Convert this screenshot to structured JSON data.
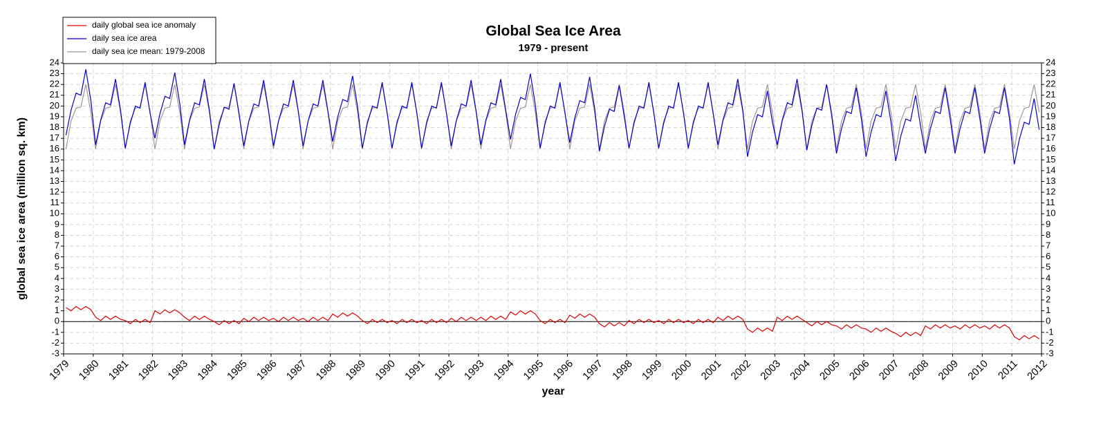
{
  "chart_data": {
    "type": "line",
    "title": "Global Sea Ice Area",
    "subtitle": "1979 - present",
    "xlabel": "year",
    "ylabel": "global sea ice area (million sq. km)",
    "xlim": [
      1979,
      2012
    ],
    "xticks": [
      1979,
      1980,
      1981,
      1982,
      1983,
      1984,
      1985,
      1986,
      1987,
      1988,
      1989,
      1990,
      1991,
      1992,
      1993,
      1994,
      1995,
      1996,
      1997,
      1998,
      1999,
      2000,
      2001,
      2002,
      2003,
      2004,
      2005,
      2006,
      2007,
      2008,
      2009,
      2010,
      2011,
      2012
    ],
    "ylim": [
      -3,
      24
    ],
    "yticks": [
      -3,
      -2,
      -1,
      0,
      1,
      2,
      3,
      4,
      5,
      6,
      7,
      8,
      9,
      10,
      11,
      12,
      13,
      14,
      15,
      16,
      17,
      18,
      19,
      20,
      21,
      22,
      23,
      24
    ],
    "grid": true,
    "legend": "upper left",
    "x": [
      1979.08,
      1979.25,
      1979.42,
      1979.58,
      1979.75,
      1979.92,
      1980.08,
      1980.25,
      1980.42,
      1980.58,
      1980.75,
      1980.92,
      1981.08,
      1981.25,
      1981.42,
      1981.58,
      1981.75,
      1981.92,
      1982.08,
      1982.25,
      1982.42,
      1982.58,
      1982.75,
      1982.92,
      1983.08,
      1983.25,
      1983.42,
      1983.58,
      1983.75,
      1983.92,
      1984.08,
      1984.25,
      1984.42,
      1984.58,
      1984.75,
      1984.92,
      1985.08,
      1985.25,
      1985.42,
      1985.58,
      1985.75,
      1985.92,
      1986.08,
      1986.25,
      1986.42,
      1986.58,
      1986.75,
      1986.92,
      1987.08,
      1987.25,
      1987.42,
      1987.58,
      1987.75,
      1987.92,
      1988.08,
      1988.25,
      1988.42,
      1988.58,
      1988.75,
      1988.92,
      1989.08,
      1989.25,
      1989.42,
      1989.58,
      1989.75,
      1989.92,
      1990.08,
      1990.25,
      1990.42,
      1990.58,
      1990.75,
      1990.92,
      1991.08,
      1991.25,
      1991.42,
      1991.58,
      1991.75,
      1991.92,
      1992.08,
      1992.25,
      1992.42,
      1992.58,
      1992.75,
      1992.92,
      1993.08,
      1993.25,
      1993.42,
      1993.58,
      1993.75,
      1993.92,
      1994.08,
      1994.25,
      1994.42,
      1994.58,
      1994.75,
      1994.92,
      1995.08,
      1995.25,
      1995.42,
      1995.58,
      1995.75,
      1995.92,
      1996.08,
      1996.25,
      1996.42,
      1996.58,
      1996.75,
      1996.92,
      1997.08,
      1997.25,
      1997.42,
      1997.58,
      1997.75,
      1997.92,
      1998.08,
      1998.25,
      1998.42,
      1998.58,
      1998.75,
      1998.92,
      1999.08,
      1999.25,
      1999.42,
      1999.58,
      1999.75,
      1999.92,
      2000.08,
      2000.25,
      2000.42,
      2000.58,
      2000.75,
      2000.92,
      2001.08,
      2001.25,
      2001.42,
      2001.58,
      2001.75,
      2001.92,
      2002.08,
      2002.25,
      2002.42,
      2002.58,
      2002.75,
      2002.92,
      2003.08,
      2003.25,
      2003.42,
      2003.58,
      2003.75,
      2003.92,
      2004.08,
      2004.25,
      2004.42,
      2004.58,
      2004.75,
      2004.92,
      2005.08,
      2005.25,
      2005.42,
      2005.58,
      2005.75,
      2005.92,
      2006.08,
      2006.25,
      2006.42,
      2006.58,
      2006.75,
      2006.92,
      2007.08,
      2007.25,
      2007.42,
      2007.58,
      2007.75,
      2007.92,
      2008.08,
      2008.25,
      2008.42,
      2008.58,
      2008.75,
      2008.92,
      2009.08,
      2009.25,
      2009.42,
      2009.58,
      2009.75,
      2009.92,
      2010.08,
      2010.25,
      2010.42,
      2010.58,
      2010.75,
      2010.92,
      2011.08,
      2011.25,
      2011.42,
      2011.58,
      2011.75,
      2011.92
    ],
    "series": [
      {
        "name": "daily global sea ice anomaly",
        "color": "#dd0000",
        "values": [
          1.3,
          1.0,
          1.4,
          1.1,
          1.4,
          1.1,
          0.4,
          0.1,
          0.5,
          0.2,
          0.5,
          0.2,
          0.1,
          -0.2,
          0.2,
          -0.1,
          0.2,
          -0.1,
          1.0,
          0.7,
          1.1,
          0.8,
          1.1,
          0.8,
          0.4,
          0.1,
          0.5,
          0.2,
          0.5,
          0.2,
          0.0,
          -0.3,
          0.1,
          -0.2,
          0.1,
          -0.2,
          0.3,
          0.0,
          0.4,
          0.1,
          0.4,
          0.1,
          0.3,
          0.0,
          0.4,
          0.1,
          0.4,
          0.1,
          0.3,
          0.0,
          0.4,
          0.1,
          0.4,
          0.1,
          0.7,
          0.4,
          0.8,
          0.5,
          0.8,
          0.5,
          0.1,
          -0.2,
          0.2,
          -0.1,
          0.2,
          -0.1,
          0.1,
          -0.2,
          0.2,
          -0.1,
          0.2,
          -0.1,
          0.1,
          -0.2,
          0.2,
          -0.1,
          0.2,
          -0.1,
          0.3,
          0.0,
          0.4,
          0.1,
          0.4,
          0.1,
          0.4,
          0.1,
          0.5,
          0.2,
          0.5,
          0.2,
          0.9,
          0.6,
          1.0,
          0.7,
          1.0,
          0.7,
          0.1,
          -0.2,
          0.2,
          -0.1,
          0.2,
          -0.1,
          0.6,
          0.3,
          0.7,
          0.4,
          0.7,
          0.4,
          -0.2,
          -0.5,
          -0.1,
          -0.4,
          -0.1,
          -0.4,
          0.1,
          -0.2,
          0.2,
          -0.1,
          0.2,
          -0.1,
          0.1,
          -0.2,
          0.2,
          -0.1,
          0.2,
          -0.1,
          0.1,
          -0.2,
          0.2,
          -0.1,
          0.2,
          -0.1,
          0.4,
          0.1,
          0.5,
          0.2,
          0.5,
          0.2,
          -0.7,
          -1.0,
          -0.6,
          -0.9,
          -0.6,
          -0.9,
          0.4,
          0.1,
          0.5,
          0.2,
          0.5,
          0.2,
          -0.1,
          -0.4,
          0.0,
          -0.3,
          0.0,
          -0.3,
          -0.4,
          -0.7,
          -0.3,
          -0.6,
          -0.3,
          -0.6,
          -0.7,
          -1.0,
          -0.6,
          -0.9,
          -0.6,
          -0.9,
          -1.1,
          -1.4,
          -1.0,
          -1.3,
          -1.0,
          -1.3,
          -0.4,
          -0.7,
          -0.3,
          -0.6,
          -0.3,
          -0.6,
          -0.4,
          -0.7,
          -0.3,
          -0.6,
          -0.3,
          -0.6,
          -0.4,
          -0.7,
          -0.3,
          -0.6,
          -0.3,
          -0.6,
          -1.4,
          -1.7,
          -1.3,
          -1.6,
          -1.3,
          -1.6
        ]
      },
      {
        "name": "daily sea ice area",
        "color": "#0000cc",
        "values": [
          17.3,
          19.6,
          21.2,
          21.0,
          23.4,
          20.5,
          16.4,
          18.7,
          20.3,
          20.1,
          22.5,
          19.6,
          16.1,
          18.4,
          20.0,
          19.8,
          22.2,
          19.3,
          17.0,
          19.3,
          20.9,
          20.7,
          23.1,
          20.2,
          16.4,
          18.7,
          20.3,
          20.1,
          22.5,
          19.6,
          16.0,
          18.3,
          19.9,
          19.7,
          22.1,
          19.2,
          16.3,
          18.6,
          20.2,
          20.0,
          22.4,
          19.5,
          16.3,
          18.6,
          20.2,
          20.0,
          22.4,
          19.5,
          16.3,
          18.6,
          20.2,
          20.0,
          22.4,
          19.5,
          16.7,
          19.0,
          20.6,
          20.4,
          22.8,
          19.9,
          16.1,
          18.4,
          20.0,
          19.8,
          22.2,
          19.3,
          16.1,
          18.4,
          20.0,
          19.8,
          22.2,
          19.3,
          16.1,
          18.4,
          20.0,
          19.8,
          22.2,
          19.3,
          16.3,
          18.6,
          20.2,
          20.0,
          22.4,
          19.5,
          16.4,
          18.7,
          20.3,
          20.1,
          22.5,
          19.6,
          16.9,
          19.2,
          20.8,
          20.6,
          23.0,
          20.1,
          16.1,
          18.4,
          20.0,
          19.8,
          22.2,
          19.3,
          16.6,
          18.9,
          20.5,
          20.3,
          22.7,
          19.8,
          15.8,
          18.1,
          19.7,
          19.5,
          21.9,
          19.0,
          16.1,
          18.4,
          20.0,
          19.8,
          22.2,
          19.3,
          16.1,
          18.4,
          20.0,
          19.8,
          22.2,
          19.3,
          16.1,
          18.4,
          20.0,
          19.8,
          22.2,
          19.3,
          16.4,
          18.7,
          20.3,
          20.1,
          22.5,
          19.6,
          15.3,
          17.6,
          19.2,
          19.0,
          21.4,
          18.5,
          16.4,
          18.7,
          20.3,
          20.1,
          22.5,
          19.6,
          15.9,
          18.2,
          19.8,
          19.6,
          22.0,
          19.1,
          15.6,
          17.9,
          19.5,
          19.3,
          21.7,
          18.8,
          15.3,
          17.6,
          19.2,
          19.0,
          21.4,
          18.5,
          14.9,
          17.2,
          18.8,
          18.6,
          21.0,
          18.1,
          15.6,
          17.9,
          19.5,
          19.3,
          21.7,
          18.8,
          15.6,
          17.9,
          19.5,
          19.3,
          21.7,
          18.8,
          15.6,
          17.9,
          19.5,
          19.3,
          21.7,
          18.8,
          14.6,
          16.9,
          18.5,
          18.3,
          20.7,
          17.8
        ]
      },
      {
        "name": "daily sea ice mean: 1979-2008",
        "color": "#a89090",
        "values": [
          16.0,
          18.6,
          19.8,
          19.9,
          22.0,
          19.4,
          16.0,
          18.6,
          19.8,
          19.9,
          22.0,
          19.4,
          16.0,
          18.6,
          19.8,
          19.9,
          22.0,
          19.4,
          16.0,
          18.6,
          19.8,
          19.9,
          22.0,
          19.4,
          16.0,
          18.6,
          19.8,
          19.9,
          22.0,
          19.4,
          16.0,
          18.6,
          19.8,
          19.9,
          22.0,
          19.4,
          16.0,
          18.6,
          19.8,
          19.9,
          22.0,
          19.4,
          16.0,
          18.6,
          19.8,
          19.9,
          22.0,
          19.4,
          16.0,
          18.6,
          19.8,
          19.9,
          22.0,
          19.4,
          16.0,
          18.6,
          19.8,
          19.9,
          22.0,
          19.4,
          16.0,
          18.6,
          19.8,
          19.9,
          22.0,
          19.4,
          16.0,
          18.6,
          19.8,
          19.9,
          22.0,
          19.4,
          16.0,
          18.6,
          19.8,
          19.9,
          22.0,
          19.4,
          16.0,
          18.6,
          19.8,
          19.9,
          22.0,
          19.4,
          16.0,
          18.6,
          19.8,
          19.9,
          22.0,
          19.4,
          16.0,
          18.6,
          19.8,
          19.9,
          22.0,
          19.4,
          16.0,
          18.6,
          19.8,
          19.9,
          22.0,
          19.4,
          16.0,
          18.6,
          19.8,
          19.9,
          22.0,
          19.4,
          16.0,
          18.6,
          19.8,
          19.9,
          22.0,
          19.4,
          16.0,
          18.6,
          19.8,
          19.9,
          22.0,
          19.4,
          16.0,
          18.6,
          19.8,
          19.9,
          22.0,
          19.4,
          16.0,
          18.6,
          19.8,
          19.9,
          22.0,
          19.4,
          16.0,
          18.6,
          19.8,
          19.9,
          22.0,
          19.4,
          16.0,
          18.6,
          19.8,
          19.9,
          22.0,
          19.4,
          16.0,
          18.6,
          19.8,
          19.9,
          22.0,
          19.4,
          16.0,
          18.6,
          19.8,
          19.9,
          22.0,
          19.4,
          16.0,
          18.6,
          19.8,
          19.9,
          22.0,
          19.4,
          16.0,
          18.6,
          19.8,
          19.9,
          22.0,
          19.4,
          16.0,
          18.6,
          19.8,
          19.9,
          22.0,
          19.4,
          16.0,
          18.6,
          19.8,
          19.9,
          22.0,
          19.4,
          16.0,
          18.6,
          19.8,
          19.9,
          22.0,
          19.4,
          16.0,
          18.6,
          19.8,
          19.9,
          22.0,
          19.4,
          16.0,
          18.6,
          19.8,
          19.9,
          22.0,
          19.4
        ]
      }
    ]
  }
}
